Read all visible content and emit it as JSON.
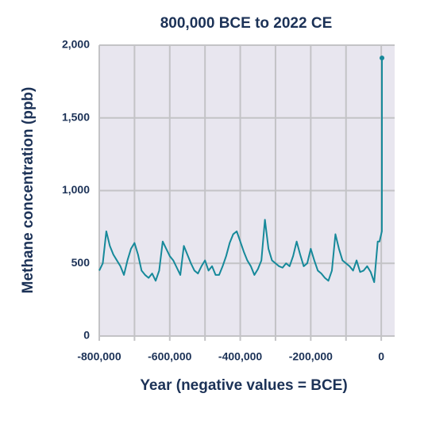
{
  "chart_data": {
    "type": "line",
    "title": "800,000 BCE to 2022 CE",
    "x_label": "Year (negative values = BCE)",
    "y_label": "Methane concentration (ppb)",
    "x": [
      -800000,
      -790000,
      -780000,
      -770000,
      -760000,
      -750000,
      -740000,
      -730000,
      -720000,
      -710000,
      -700000,
      -690000,
      -680000,
      -670000,
      -660000,
      -650000,
      -640000,
      -630000,
      -620000,
      -610000,
      -600000,
      -590000,
      -580000,
      -570000,
      -560000,
      -550000,
      -540000,
      -530000,
      -520000,
      -510000,
      -500000,
      -490000,
      -480000,
      -470000,
      -460000,
      -450000,
      -440000,
      -430000,
      -420000,
      -410000,
      -400000,
      -390000,
      -380000,
      -370000,
      -360000,
      -350000,
      -340000,
      -330000,
      -320000,
      -310000,
      -300000,
      -290000,
      -280000,
      -270000,
      -260000,
      -250000,
      -240000,
      -230000,
      -220000,
      -210000,
      -200000,
      -190000,
      -180000,
      -170000,
      -160000,
      -150000,
      -140000,
      -130000,
      -120000,
      -110000,
      -100000,
      -90000,
      -80000,
      -70000,
      -60000,
      -50000,
      -40000,
      -30000,
      -20000,
      -10000,
      -5000,
      1750,
      1950,
      2022
    ],
    "series": [
      {
        "name": "Methane",
        "color": "#16899a",
        "values": [
          450,
          500,
          720,
          620,
          560,
          520,
          480,
          420,
          520,
          600,
          640,
          560,
          450,
          420,
          400,
          430,
          380,
          450,
          650,
          600,
          550,
          520,
          470,
          420,
          620,
          560,
          500,
          450,
          430,
          480,
          520,
          450,
          480,
          420,
          420,
          480,
          550,
          640,
          700,
          720,
          650,
          580,
          520,
          480,
          420,
          460,
          520,
          800,
          600,
          520,
          500,
          480,
          470,
          500,
          480,
          550,
          650,
          560,
          480,
          500,
          600,
          520,
          450,
          430,
          400,
          380,
          450,
          700,
          600,
          520,
          500,
          480,
          450,
          520,
          440,
          450,
          480,
          440,
          370,
          650,
          650,
          720,
          1200,
          1912
        ]
      }
    ],
    "xlim": [
      -800000,
      38000
    ],
    "ylim": [
      0,
      2000
    ],
    "xticks": [
      {
        "value": -800000,
        "label": "-800,000"
      },
      {
        "value": -600000,
        "label": "-600,000"
      },
      {
        "value": -400000,
        "label": "-400,000"
      },
      {
        "value": -200000,
        "label": "-200,000"
      },
      0
    ],
    "xgrid": [
      -800000,
      -700000,
      -600000,
      -500000,
      -400000,
      -300000,
      -200000,
      -100000,
      0
    ],
    "yticks": [
      0,
      {
        "value": 500,
        "label": "500"
      },
      {
        "value": 1000,
        "label": "1,000"
      },
      {
        "value": 1500,
        "label": "1,500"
      },
      {
        "value": 2000,
        "label": "2,000"
      }
    ],
    "grid": true
  }
}
